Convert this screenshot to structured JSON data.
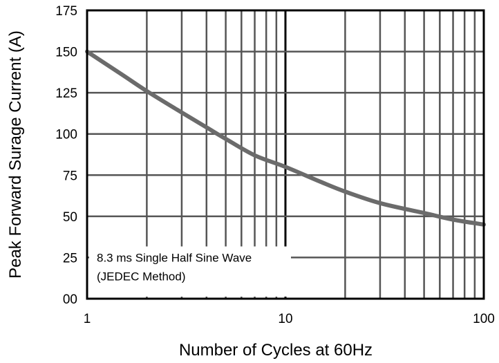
{
  "chart_data": {
    "type": "line",
    "title": "",
    "xlabel": "Number of Cycles at 60Hz",
    "ylabel": "Peak Forward Surage Current (A)",
    "x_scale": "log",
    "xlim": [
      1,
      100
    ],
    "ylim": [
      0,
      175
    ],
    "x_ticks": [
      1,
      10,
      100
    ],
    "x_tick_labels": [
      "1",
      "10",
      "100"
    ],
    "y_ticks": [
      0,
      25,
      50,
      75,
      100,
      125,
      150,
      175
    ],
    "y_tick_labels": [
      "00",
      "25",
      "50",
      "75",
      "100",
      "125",
      "150",
      "175"
    ],
    "grid": true,
    "series": [
      {
        "x": [
          1,
          1.5,
          2,
          3,
          4,
          5,
          7,
          10,
          15,
          20,
          30,
          50,
          70,
          100
        ],
        "y": [
          150,
          136,
          126,
          113,
          104,
          97,
          87,
          80,
          71,
          65,
          58,
          52,
          48,
          45
        ]
      }
    ],
    "annotation": {
      "lines": [
        "8.3 ms Single Half Sine Wave",
        "(JEDEC Method)"
      ]
    },
    "colors": {
      "curve": "#6b6b6b",
      "grid": "#555555",
      "axis": "#000000"
    }
  }
}
